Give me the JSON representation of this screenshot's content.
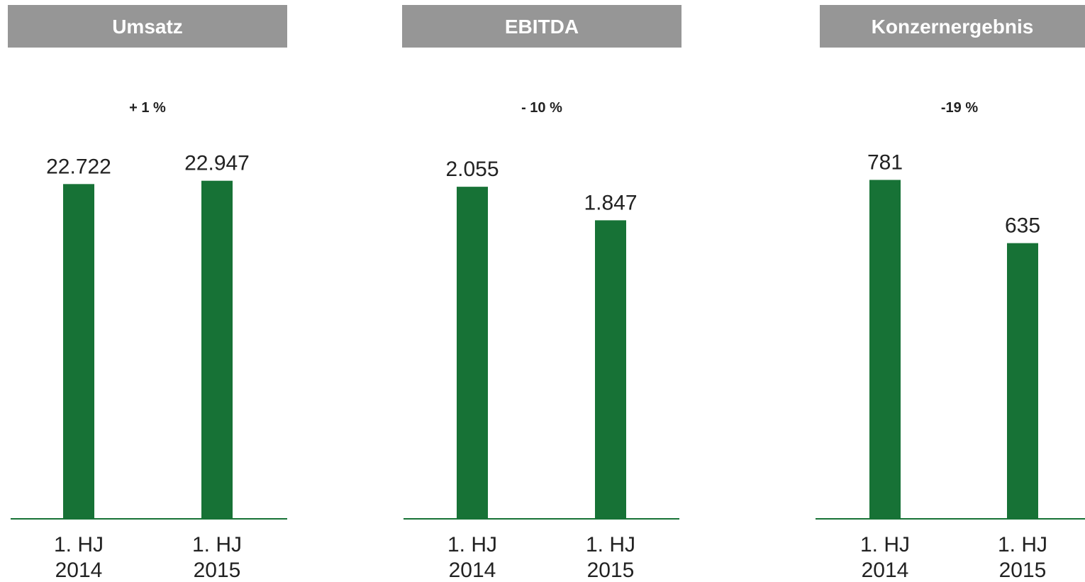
{
  "colors": {
    "bar": "#177236",
    "axis": "#177236",
    "header_bg": "#969696",
    "header_text": "#ffffff",
    "text": "#222222"
  },
  "chart_data": [
    {
      "type": "bar",
      "title": "Umsatz",
      "change": "+ 1 %",
      "categories": [
        [
          "1. HJ",
          "2014"
        ],
        [
          "1. HJ",
          "2015"
        ]
      ],
      "values": [
        22722,
        22947
      ],
      "value_labels": [
        "22.722",
        "22.947"
      ],
      "ylim": [
        0,
        23800
      ],
      "grid": false,
      "legend": "none"
    },
    {
      "type": "bar",
      "title": "EBITDA",
      "change": "- 10 %",
      "categories": [
        [
          "1. HJ",
          "2014"
        ],
        [
          "1. HJ",
          "2015"
        ]
      ],
      "values": [
        2055,
        1847
      ],
      "value_labels": [
        "2.055",
        "1.847"
      ],
      "ylim": [
        0,
        2170
      ],
      "grid": false,
      "legend": "none"
    },
    {
      "type": "bar",
      "title": "Konzernergebnis",
      "change": "-19 %",
      "categories": [
        [
          "1. HJ",
          "2014"
        ],
        [
          "1. HJ",
          "2015"
        ]
      ],
      "values": [
        781,
        635
      ],
      "value_labels": [
        "781",
        "635"
      ],
      "ylim": [
        0,
        808
      ],
      "grid": false,
      "legend": "none"
    }
  ]
}
